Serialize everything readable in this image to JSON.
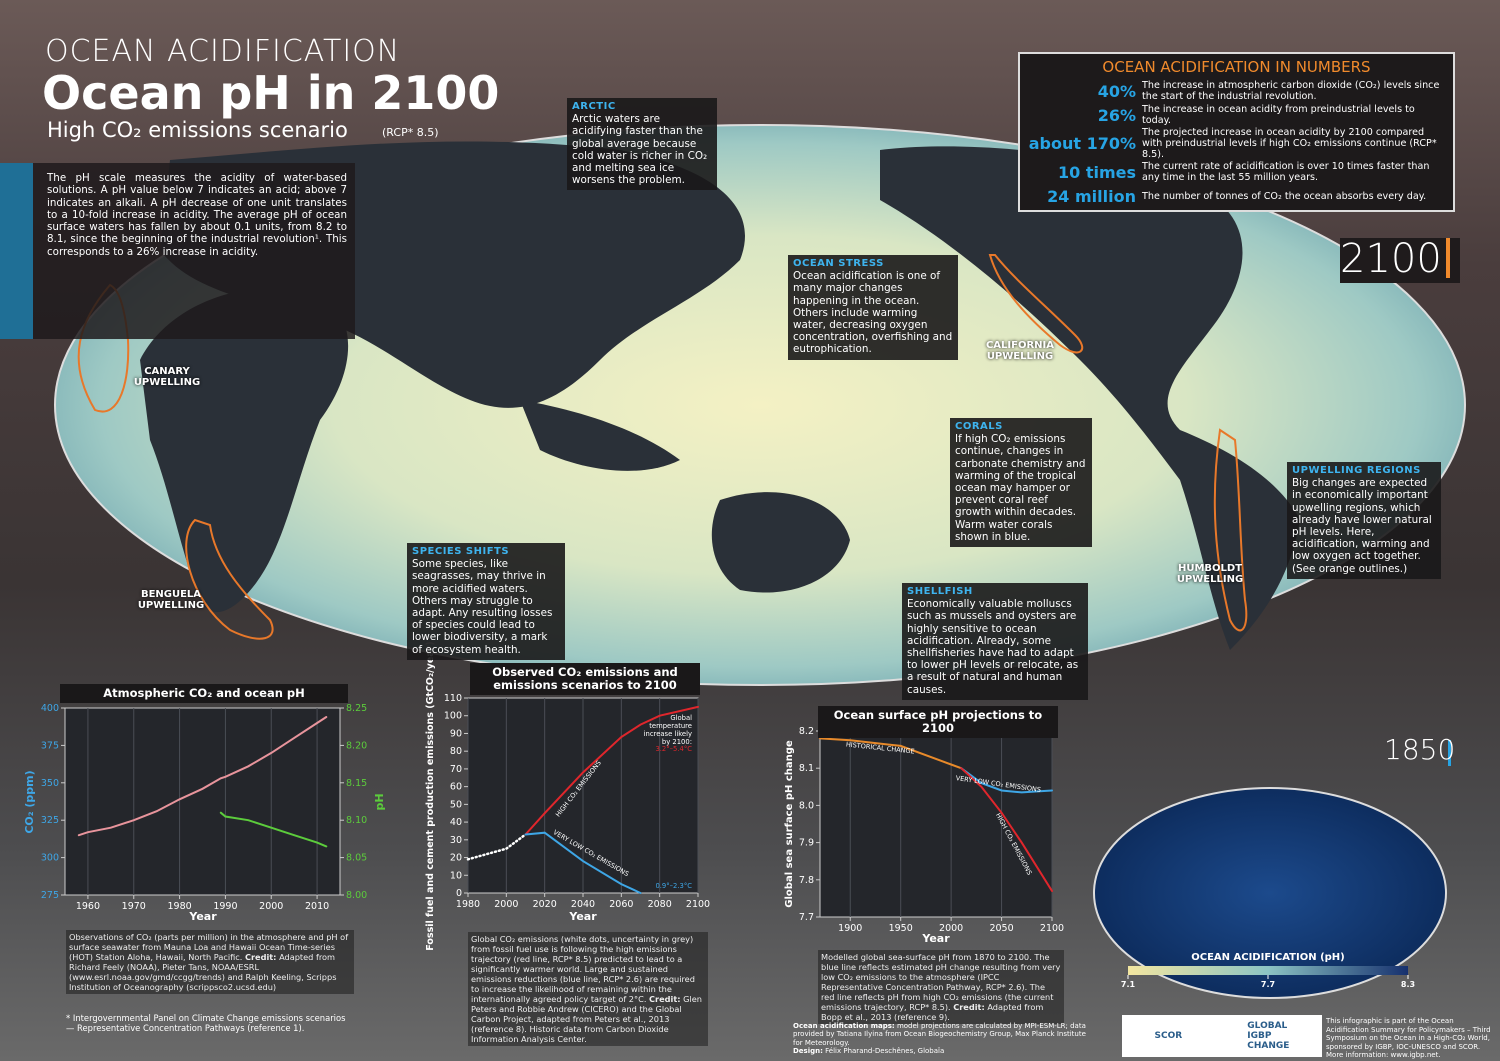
{
  "header": {
    "kicker": "OCEAN ACIDIFICATION",
    "title": "Ocean pH in 2100",
    "subtitle": "High CO₂ emissions scenario",
    "subtitle_note": "(RCP* 8.5)"
  },
  "intro": "The pH scale measures the acidity of water-based solutions. A pH value below 7 indicates an acid; above 7 indicates an alkali. A pH decrease of one unit translates to a 10-fold increase in acidity. The average pH of ocean surface waters has fallen by about 0.1 units, from 8.2 to 8.1, since the beginning of the industrial revolution¹. This corresponds to a 26% increase in acidity.",
  "numbers": {
    "title": "OCEAN ACIDIFICATION IN NUMBERS",
    "items": [
      {
        "figure": "40%",
        "text": "The increase in atmospheric carbon dioxide (CO₂) levels since the start of the industrial revolution."
      },
      {
        "figure": "26%",
        "text": "The increase in ocean acidity from preindustrial levels to today."
      },
      {
        "figure": "about 170%",
        "text": "The projected increase in ocean acidity by 2100 compared with preindustrial levels if high CO₂ emissions continue (RCP* 8.5)."
      },
      {
        "figure": "10 times",
        "text": "The current rate of acidification is over 10 times faster than any time in the last 55 million years."
      },
      {
        "figure": "24 million",
        "text": "The number of tonnes of CO₂ the ocean absorbs every day."
      }
    ]
  },
  "callouts": [
    {
      "title": "ARCTIC",
      "text": "Arctic waters are acidifying faster than the global average because cold water is richer in CO₂ and melting sea ice worsens the problem."
    },
    {
      "title": "OCEAN STRESS",
      "text": "Ocean acidification is one of many major changes happening in the ocean. Others include warming water, decreasing oxygen concentration, overfishing and eutrophication."
    },
    {
      "title": "CORALS",
      "text": "If high CO₂ emissions continue, changes in carbonate chemistry and warming of the tropical ocean may hamper or prevent coral reef growth within decades. Warm water corals shown in blue."
    },
    {
      "title": "UPWELLING REGIONS",
      "text": "Big changes are expected in economically important upwelling regions, which already have lower natural pH levels. Here, acidification, warming and low oxygen act together. (See orange outlines.)"
    },
    {
      "title": "SPECIES SHIFTS",
      "text": "Some species, like seagrasses, may thrive in more acidified waters. Others may struggle to adapt. Any resulting losses of species could lead to lower biodiversity, a mark of ecosystem health."
    },
    {
      "title": "SHELLFISH",
      "text": "Economically valuable molluscs such as mussels and oysters are highly sensitive to ocean acidification. Already, some shellfisheries have had to adapt to lower pH levels or relocate, as a result of natural and human causes."
    }
  ],
  "map_labels": [
    "CANARY UPWELLING",
    "BENGUELA UPWELLING",
    "CALIFORNIA UPWELLING",
    "HUMBOLDT UPWELLING"
  ],
  "year_labels": [
    "2100",
    "1850"
  ],
  "colorbar": {
    "title": "OCEAN ACIDIFICATION (pH)",
    "ticks": [
      7.1,
      7.7,
      8.3
    ]
  },
  "captions": [
    {
      "text": "Observations of CO₂ (parts per million) in the atmosphere and pH of surface seawater from Mauna Loa and Hawaii Ocean Time-series (HOT) Station Aloha, Hawaii, North Pacific.",
      "credit_label": "Credit:",
      "credit": "Adapted from Richard Feely (NOAA), Pieter Tans, NOAA/ESRL (www.esrl.noaa.gov/gmd/ccgg/trends) and Ralph Keeling, Scripps Institution of Oceanography (scrippsco2.ucsd.edu)"
    },
    {
      "text": "Global CO₂ emissions (white dots, uncertainty in grey) from fossil fuel use is following the high emissions trajectory (red line, RCP* 8.5) predicted to lead to a significantly warmer world. Large and sustained emissions reductions (blue line, RCP* 2.6) are required to increase the likelihood of remaining within the internationally agreed policy target of 2°C.",
      "credit_label": "Credit:",
      "credit": "Glen Peters and Robbie Andrew (CICERO) and the Global Carbon Project, adapted from Peters et al., 2013 (reference 8). Historic data from Carbon Dioxide Information Analysis Center."
    },
    {
      "text": "Modelled global sea-surface pH from 1870 to 2100. The blue line reflects estimated pH change resulting from very low CO₂ emissions to the atmosphere (IPCC Representative Concentration Pathway, RCP* 2.6). The red line reflects pH from high CO₂ emissions (the current emissions trajectory, RCP* 8.5).",
      "credit_label": "Credit:",
      "credit": "Adapted from Bopp et al., 2013 (reference 9)."
    }
  ],
  "footnote": "* Intergovernmental Panel on Climate Change emissions scenarios — Representative Concentration Pathways (reference 1).",
  "map_credit": {
    "label": "Ocean acidification maps:",
    "text": "model projections are calculated by MPI-ESM-LR; data provided by Tatiana Ilyina from Ocean Biogeochemistry Group, Max Planck Institute for Meteorology.",
    "design_label": "Design:",
    "design": "Félix Pharand-Deschênes, Globaïa"
  },
  "logos": [
    "SCOR",
    "GLOBAL",
    "IGBP",
    "CHANGE"
  ],
  "about": "This infographic is part of the Ocean Acidification Summary for Policymakers – Third Symposium on the Ocean in a High-CO₂ World, sponsored by IGBP, IOC-UNESCO and SCOR. More information: www.igbp.net.",
  "chart_data": [
    {
      "type": "line",
      "title": "Atmospheric CO₂ and ocean pH",
      "x_label": "Year",
      "y_label": "CO₂ (ppm)",
      "y2_label": "pH",
      "x": [
        1958,
        1960,
        1965,
        1970,
        1975,
        1980,
        1985,
        1989,
        1990,
        1995,
        2000,
        2005,
        2010,
        2012
      ],
      "series": [
        {
          "color": "#e8949c",
          "values": [
            315,
            317,
            320,
            325,
            331,
            339,
            346,
            353,
            354,
            361,
            370,
            380,
            390,
            394
          ]
        },
        {
          "color": "#5ccc3c",
          "axis": "y2",
          "values": [
            null,
            null,
            null,
            null,
            null,
            null,
            null,
            8.11,
            8.105,
            8.1,
            8.09,
            8.08,
            8.07,
            8.065
          ]
        }
      ],
      "xlim": [
        1955,
        2015
      ],
      "xticks": [
        1960,
        1970,
        1980,
        1990,
        2000,
        2010
      ],
      "ylim": [
        275,
        400
      ],
      "yticks": [
        275,
        300,
        325,
        350,
        375,
        400
      ],
      "y2lim": [
        8,
        8.25
      ],
      "y2ticks": [
        {
          "value": 8,
          "label": "8.00"
        },
        8.05,
        {
          "value": 8.1,
          "label": "8.10"
        },
        8.15,
        {
          "value": 8.2,
          "label": "8.20"
        },
        8.25
      ],
      "grid": true
    },
    {
      "type": "line",
      "title": "Observed CO₂ emissions and emissions scenarios to 2100",
      "x_label": "Year",
      "y_label": "Fossil fuel and cement production emissions (GtCO₂/year)",
      "x": [
        1980,
        1990,
        2000,
        2010,
        2020,
        2040,
        2060,
        2070,
        2080,
        2100
      ],
      "series": [
        {
          "color": "#ffffff",
          "style": "dotted",
          "values": [
            19,
            22,
            25,
            33,
            null,
            null,
            null,
            null,
            null,
            null
          ]
        },
        {
          "color": "#e0262c",
          "values": [
            null,
            null,
            null,
            33,
            45,
            68,
            88,
            95,
            100,
            105
          ]
        },
        {
          "color": "#3ea6e6",
          "values": [
            null,
            null,
            null,
            33,
            34,
            18,
            5,
            0,
            null,
            null
          ]
        }
      ],
      "annotations": [
        "HIGH CO₂ EMISSIONS",
        "VERY LOW CO₂ EMISSIONS",
        "Global temperature increase likely by 2100:",
        "3.2°–5.4°C",
        "0.9°–2.3°C"
      ],
      "xlim": [
        1980,
        2100
      ],
      "xticks": [
        1980,
        2000,
        2020,
        2040,
        2060,
        2080,
        2100
      ],
      "ylim": [
        0,
        110
      ],
      "yticks": [
        0,
        10,
        20,
        30,
        40,
        50,
        60,
        70,
        80,
        90,
        100,
        110
      ],
      "grid": true
    },
    {
      "type": "line",
      "title": "Ocean surface pH projections to 2100",
      "x_label": "Year",
      "y_label": "Global sea surface pH change",
      "x": [
        1870,
        1900,
        1950,
        2000,
        2010,
        2030,
        2050,
        2070,
        2100
      ],
      "series": [
        {
          "color": "#e88a2a",
          "values": [
            8.18,
            8.175,
            8.16,
            8.11,
            8.1,
            null,
            null,
            null,
            null
          ]
        },
        {
          "color": "#3ea6e6",
          "values": [
            null,
            null,
            null,
            null,
            8.1,
            8.06,
            8.04,
            8.035,
            8.04
          ]
        },
        {
          "color": "#e0262c",
          "values": [
            null,
            null,
            null,
            null,
            8.1,
            8.05,
            7.98,
            7.9,
            7.77
          ]
        }
      ],
      "annotations": [
        "HISTORICAL CHANGE",
        "VERY LOW CO₂ EMISSIONS",
        "HIGH CO₂ EMISSIONS"
      ],
      "xlim": [
        1870,
        2100
      ],
      "xticks": [
        1900,
        1950,
        2000,
        2050,
        2100
      ],
      "ylim": [
        7.7,
        8.2
      ],
      "yticks": [
        7.7,
        7.8,
        7.9,
        {
          "value": 8,
          "label": "8.0"
        },
        8.1,
        8.2
      ],
      "grid": true
    }
  ]
}
